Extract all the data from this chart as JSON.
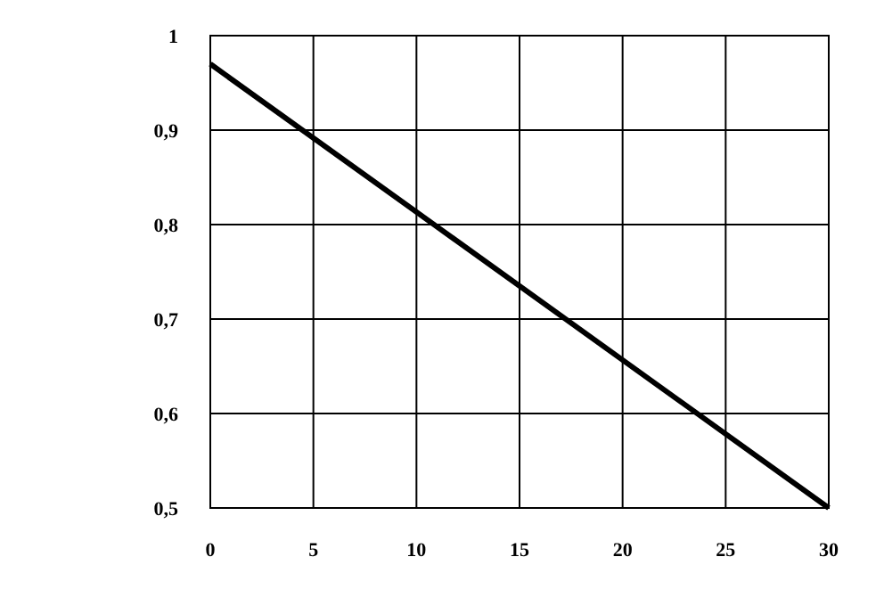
{
  "chart_data": {
    "type": "line",
    "x": [
      0,
      30
    ],
    "series": [
      {
        "color": "#000000",
        "values": [
          0.97,
          0.5
        ]
      }
    ],
    "xlim": [
      0,
      30
    ],
    "xticks": [
      0,
      5,
      10,
      15,
      20,
      25,
      30
    ],
    "ylim": [
      0.5,
      1
    ],
    "yticks": [
      {
        "value": 0.5,
        "label": "0,5"
      },
      {
        "value": 0.6,
        "label": "0,6"
      },
      {
        "value": 0.7,
        "label": "0,7"
      },
      {
        "value": 0.8,
        "label": "0,8"
      },
      {
        "value": 0.9,
        "label": "0,9"
      },
      {
        "value": 1,
        "label": "1"
      }
    ],
    "grid": true,
    "marker": "none",
    "line_style": "solid"
  }
}
